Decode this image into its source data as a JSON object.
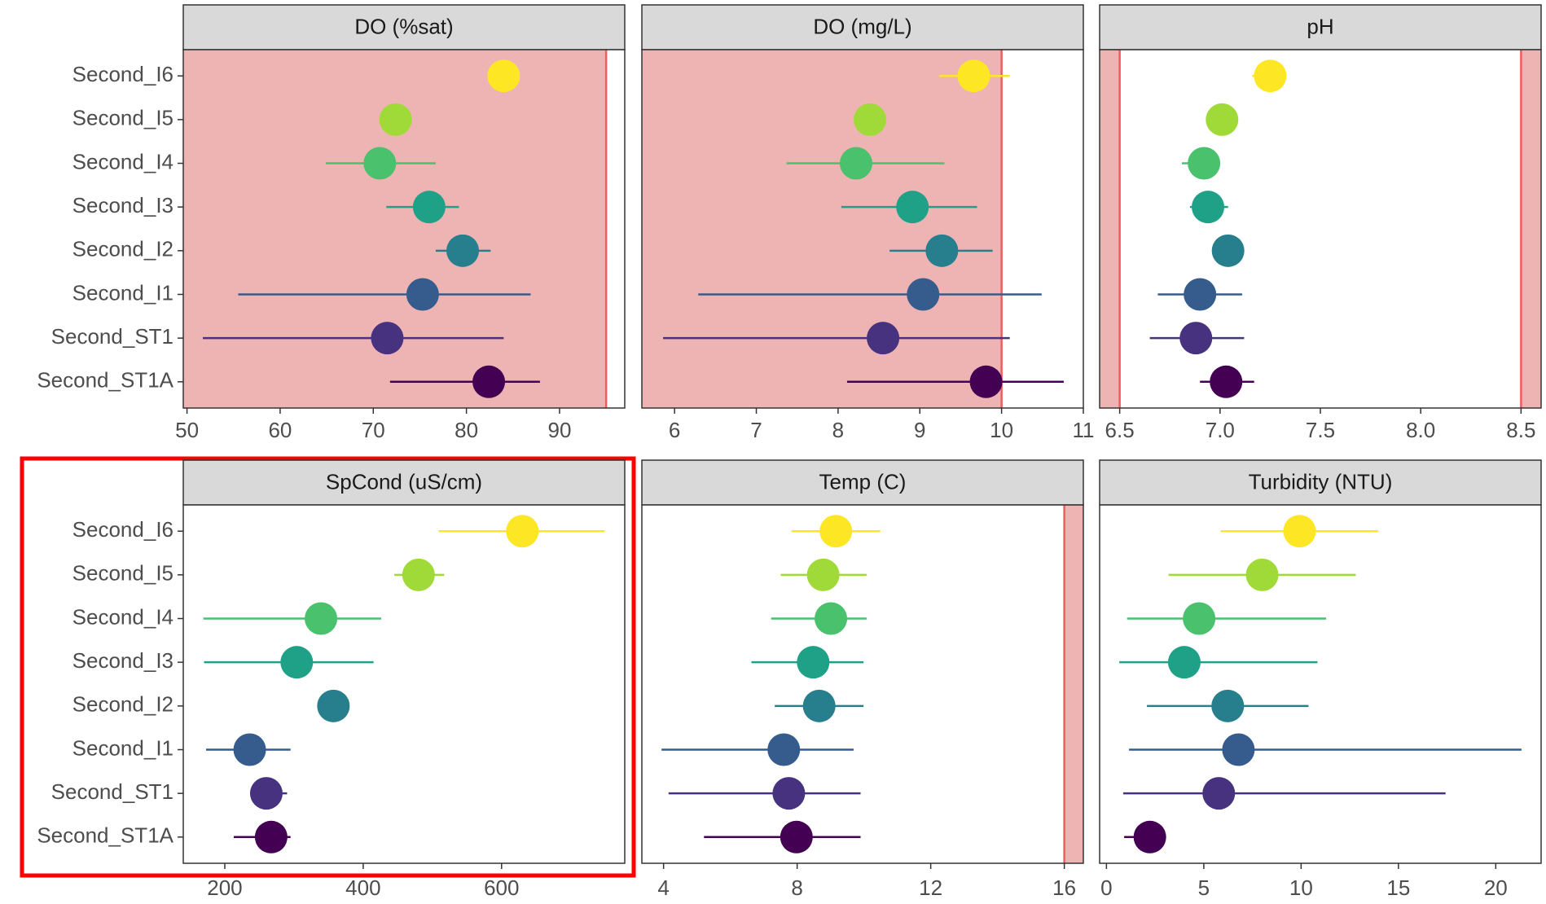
{
  "chart_data": [
    {
      "type": "pointrange",
      "title": "DO (%sat)",
      "categories": [
        "Second_I6",
        "Second_I5",
        "Second_I4",
        "Second_I3",
        "Second_I2",
        "Second_I1",
        "Second_ST1",
        "Second_ST1A"
      ],
      "colors": [
        "#fde725",
        "#a0da39",
        "#4ac16d",
        "#1fa187",
        "#277f8e",
        "#365c8d",
        "#46327e",
        "#440154"
      ],
      "values": [
        84.0,
        72.4,
        70.7,
        76.0,
        79.6,
        75.3,
        71.5,
        82.4
      ],
      "low": [
        null,
        null,
        64.9,
        71.4,
        76.7,
        55.5,
        51.7,
        71.8
      ],
      "high": [
        null,
        null,
        76.7,
        79.2,
        82.6,
        86.9,
        84.0,
        87.9
      ],
      "xlim": [
        49.6,
        97
      ],
      "xticks": [
        50,
        60,
        70,
        80,
        90
      ],
      "thresholds": [
        {
          "value": 95,
          "side": "below"
        }
      ]
    },
    {
      "type": "pointrange",
      "title": "DO (mg/L)",
      "colors": [
        "#fde725",
        "#a0da39",
        "#4ac16d",
        "#1fa187",
        "#277f8e",
        "#365c8d",
        "#46327e",
        "#440154"
      ],
      "values": [
        9.66,
        8.39,
        8.22,
        8.91,
        9.27,
        9.04,
        8.55,
        9.81
      ],
      "low": [
        9.24,
        null,
        7.37,
        8.04,
        8.63,
        6.29,
        5.86,
        8.11
      ],
      "high": [
        10.1,
        null,
        9.3,
        9.7,
        9.89,
        10.49,
        10.1,
        10.76
      ],
      "xlim": [
        5.6,
        11
      ],
      "xticks": [
        6,
        7,
        8,
        9,
        10,
        11
      ],
      "thresholds": [
        {
          "value": 10,
          "side": "below"
        }
      ]
    },
    {
      "type": "pointrange",
      "title": "pH",
      "colors": [
        "#fde725",
        "#a0da39",
        "#4ac16d",
        "#1fa187",
        "#277f8e",
        "#365c8d",
        "#46327e",
        "#440154"
      ],
      "values": [
        7.25,
        7.01,
        6.92,
        6.94,
        7.04,
        6.9,
        6.88,
        7.03
      ],
      "low": [
        7.16,
        null,
        6.81,
        6.85,
        null,
        6.69,
        6.65,
        6.9
      ],
      "high": [
        7.33,
        null,
        6.96,
        7.04,
        null,
        7.11,
        7.12,
        7.17
      ],
      "xlim": [
        6.4,
        8.6
      ],
      "xticks": [
        6.5,
        {
          "value": 7,
          "label": "7.0"
        },
        7.5,
        {
          "value": 8,
          "label": "8.0"
        },
        8.5
      ],
      "thresholds": [
        {
          "value": 6.5,
          "side": "below"
        },
        {
          "value": 8.5,
          "side": "above"
        }
      ]
    },
    {
      "type": "pointrange",
      "title": "SpCond (uS/cm)",
      "categories": [
        "Second_I6",
        "Second_I5",
        "Second_I4",
        "Second_I3",
        "Second_I2",
        "Second_I1",
        "Second_ST1",
        "Second_ST1A"
      ],
      "colors": [
        "#fde725",
        "#a0da39",
        "#4ac16d",
        "#1fa187",
        "#277f8e",
        "#365c8d",
        "#46327e",
        "#440154"
      ],
      "values": [
        630,
        480,
        339,
        304,
        357,
        236,
        260,
        267
      ],
      "low": [
        509,
        445,
        169,
        170,
        null,
        173,
        241,
        213
      ],
      "high": [
        749,
        517,
        426,
        415,
        null,
        295,
        290,
        295
      ],
      "xlim": [
        140,
        778
      ],
      "xticks": [
        200,
        400,
        600
      ]
    },
    {
      "type": "pointrange",
      "title": "Temp (C)",
      "colors": [
        "#fde725",
        "#a0da39",
        "#4ac16d",
        "#1fa187",
        "#277f8e",
        "#365c8d",
        "#46327e",
        "#440154"
      ],
      "values": [
        9.16,
        8.78,
        9.01,
        8.48,
        8.66,
        7.6,
        7.75,
        7.98
      ],
      "low": [
        7.83,
        7.51,
        7.22,
        6.63,
        7.33,
        3.94,
        4.15,
        5.21
      ],
      "high": [
        10.49,
        10.08,
        10.08,
        9.99,
        9.99,
        9.69,
        9.9,
        9.9
      ],
      "xlim": [
        3.35,
        16.57
      ],
      "xticks": [
        4,
        8,
        12,
        16
      ],
      "thresholds": [
        {
          "value": 16,
          "side": "above"
        }
      ]
    },
    {
      "type": "pointrange",
      "title": "Turbidity (NTU)",
      "colors": [
        "#fde725",
        "#a0da39",
        "#4ac16d",
        "#1fa187",
        "#277f8e",
        "#365c8d",
        "#46327e",
        "#440154"
      ],
      "values": [
        9.92,
        8.0,
        4.76,
        4.0,
        6.23,
        6.78,
        5.77,
        2.23
      ],
      "low": [
        5.87,
        3.19,
        1.06,
        0.66,
        2.08,
        1.16,
        0.86,
        0.91
      ],
      "high": [
        13.97,
        12.81,
        11.29,
        10.84,
        10.38,
        21.32,
        17.42,
        2.53
      ],
      "xlim": [
        -0.35,
        22.33
      ],
      "xticks": [
        0,
        5,
        10,
        15,
        20
      ]
    }
  ]
}
